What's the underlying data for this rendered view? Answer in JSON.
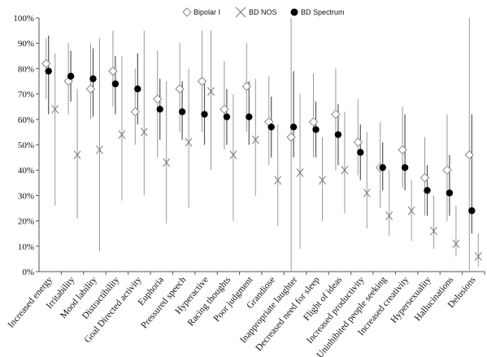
{
  "chart_data": {
    "type": "scatter",
    "ylim": [
      0,
      100
    ],
    "y_ticks": [
      "0%",
      "10%",
      "20%",
      "30%",
      "40%",
      "50%",
      "60%",
      "70%",
      "80%",
      "90%",
      "100%"
    ],
    "grid": false,
    "legend_position": "top-center",
    "categories": [
      "Increased energy",
      "Irritability",
      "Mood lability",
      "Distractibility",
      "Goal Directed activity",
      "Euphoria",
      "Pressured speech",
      "Hyperactive",
      "Racing thoughts",
      "Poor judgment",
      "Grandiose",
      "Inappropriate laughter",
      "Decreased need for sleep",
      "Flight of ideas",
      "Increased productivity",
      "Uninhibited people seeking",
      "Increased creativity",
      "Hypersexuality",
      "Hallucinations",
      "Delusions"
    ],
    "series": [
      {
        "name": "Bipolar I",
        "marker": "diamond",
        "color": "#888888",
        "values": [
          82,
          75,
          72,
          79,
          63,
          68,
          72,
          75,
          64,
          73,
          59,
          53,
          59,
          62,
          51,
          41,
          48,
          37,
          40,
          46
        ],
        "ci_low": [
          68,
          62,
          60,
          65,
          50,
          45,
          55,
          55,
          48,
          55,
          42,
          0,
          45,
          40,
          38,
          25,
          33,
          22,
          20,
          0
        ],
        "ci_high": [
          92,
          90,
          90,
          95,
          80,
          87,
          90,
          95,
          83,
          90,
          77,
          100,
          78,
          80,
          68,
          59,
          65,
          53,
          62,
          100
        ]
      },
      {
        "name": "BD NOS",
        "marker": "x",
        "color": "#777777",
        "values": [
          64,
          46,
          48,
          54,
          55,
          43,
          51,
          71,
          46,
          52,
          36,
          39,
          36,
          40,
          31,
          22,
          24,
          16,
          11,
          6
        ],
        "ci_low": [
          26,
          21,
          8,
          28,
          30,
          19,
          25,
          40,
          20,
          30,
          18,
          9,
          20,
          23,
          17,
          14,
          12,
          9,
          6,
          2
        ],
        "ci_high": [
          86,
          72,
          92,
          85,
          95,
          75,
          80,
          95,
          70,
          76,
          58,
          70,
          53,
          63,
          55,
          40,
          36,
          30,
          26,
          15
        ]
      },
      {
        "name": "BD Spectrum",
        "marker": "circle",
        "color": "#000000",
        "values": [
          79,
          77,
          76,
          74,
          72,
          64,
          63,
          62,
          61,
          61,
          57,
          57,
          56,
          54,
          47,
          41,
          41,
          32,
          31,
          24
        ],
        "ci_low": [
          62,
          67,
          61,
          62,
          58,
          52,
          52,
          50,
          50,
          50,
          45,
          45,
          45,
          42,
          36,
          32,
          32,
          22,
          22,
          15
        ],
        "ci_high": [
          93,
          87,
          88,
          85,
          86,
          76,
          75,
          74,
          72,
          75,
          69,
          79,
          67,
          66,
          58,
          51,
          62,
          42,
          46,
          62
        ]
      }
    ]
  }
}
